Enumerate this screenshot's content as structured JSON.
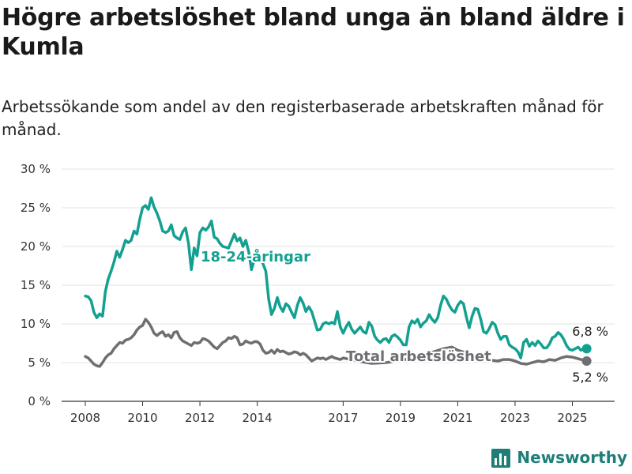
{
  "title": "Högre arbetslöshet bland unga än bland äldre i Kumla",
  "subtitle": "Arbetssökande som andel av den registerbaserade arbetskraften månad för månad.",
  "brand": "Newsworthy",
  "colors": {
    "youth": "#13a091",
    "total": "#6e6e73",
    "grid": "#e3e3e3",
    "axis": "#333333",
    "brand": "#1f7f78"
  },
  "chart_data": {
    "type": "line",
    "ylim": [
      0,
      30
    ],
    "xlim": [
      2007.7,
      2026.4
    ],
    "y_ticks": [
      0,
      5,
      10,
      15,
      20,
      25,
      30
    ],
    "y_tick_labels": [
      "0 %",
      "5 %",
      "10 %",
      "15 %",
      "20 %",
      "25 %",
      "30 %"
    ],
    "x_ticks": [
      2008,
      2010,
      2012,
      2014,
      2017,
      2019,
      2021,
      2023,
      2025
    ],
    "x_tick_labels": [
      "2008",
      "2010",
      "2012",
      "2014",
      "2017",
      "2019",
      "2021",
      "2023",
      "2025"
    ],
    "series": [
      {
        "name": "18-24-åringar",
        "key": "youth",
        "end_label": "6,8 %",
        "points": [
          [
            2008.0,
            13.6
          ],
          [
            2008.1,
            13.5
          ],
          [
            2008.2,
            13.0
          ],
          [
            2008.3,
            11.5
          ],
          [
            2008.4,
            10.8
          ],
          [
            2008.5,
            11.3
          ],
          [
            2008.6,
            11.0
          ],
          [
            2008.7,
            14.2
          ],
          [
            2008.8,
            15.8
          ],
          [
            2008.9,
            16.8
          ],
          [
            2009.0,
            18.0
          ],
          [
            2009.1,
            19.4
          ],
          [
            2009.2,
            18.6
          ],
          [
            2009.3,
            19.6
          ],
          [
            2009.4,
            20.8
          ],
          [
            2009.5,
            20.5
          ],
          [
            2009.6,
            20.8
          ],
          [
            2009.7,
            22.0
          ],
          [
            2009.8,
            21.6
          ],
          [
            2009.9,
            23.5
          ],
          [
            2010.0,
            25.0
          ],
          [
            2010.1,
            25.3
          ],
          [
            2010.2,
            24.8
          ],
          [
            2010.3,
            26.3
          ],
          [
            2010.4,
            25.1
          ],
          [
            2010.5,
            24.3
          ],
          [
            2010.6,
            23.3
          ],
          [
            2010.7,
            22.0
          ],
          [
            2010.8,
            21.8
          ],
          [
            2010.9,
            22.0
          ],
          [
            2011.0,
            22.8
          ],
          [
            2011.1,
            21.4
          ],
          [
            2011.2,
            21.1
          ],
          [
            2011.3,
            20.9
          ],
          [
            2011.4,
            21.9
          ],
          [
            2011.5,
            22.4
          ],
          [
            2011.6,
            20.4
          ],
          [
            2011.7,
            17.0
          ],
          [
            2011.8,
            19.8
          ],
          [
            2011.9,
            18.8
          ],
          [
            2012.0,
            21.8
          ],
          [
            2012.1,
            22.4
          ],
          [
            2012.2,
            22.1
          ],
          [
            2012.3,
            22.5
          ],
          [
            2012.4,
            23.3
          ],
          [
            2012.5,
            21.2
          ],
          [
            2012.6,
            21.0
          ],
          [
            2012.7,
            20.4
          ],
          [
            2012.8,
            20.0
          ],
          [
            2013.0,
            19.8
          ],
          [
            2013.2,
            21.6
          ],
          [
            2013.3,
            20.7
          ],
          [
            2013.4,
            21.1
          ],
          [
            2013.5,
            20.0
          ],
          [
            2013.6,
            20.8
          ],
          [
            2013.7,
            19.4
          ],
          [
            2013.8,
            17.0
          ],
          [
            2013.9,
            18.3
          ],
          [
            2014.1,
            18.6
          ],
          [
            2014.2,
            17.8
          ],
          [
            2014.3,
            16.8
          ],
          [
            2014.4,
            13.2
          ],
          [
            2014.5,
            11.2
          ],
          [
            2014.6,
            12.0
          ],
          [
            2014.7,
            13.4
          ],
          [
            2014.8,
            12.2
          ],
          [
            2014.9,
            11.6
          ],
          [
            2015.0,
            12.6
          ],
          [
            2015.1,
            12.3
          ],
          [
            2015.2,
            11.5
          ],
          [
            2015.3,
            10.8
          ],
          [
            2015.4,
            12.4
          ],
          [
            2015.5,
            13.4
          ],
          [
            2015.6,
            12.7
          ],
          [
            2015.7,
            11.6
          ],
          [
            2015.8,
            12.2
          ],
          [
            2015.9,
            11.6
          ],
          [
            2016.0,
            10.4
          ],
          [
            2016.1,
            9.2
          ],
          [
            2016.2,
            9.3
          ],
          [
            2016.3,
            10.0
          ],
          [
            2016.4,
            10.2
          ],
          [
            2016.5,
            10.0
          ],
          [
            2016.6,
            10.2
          ],
          [
            2016.7,
            10.0
          ],
          [
            2016.8,
            11.6
          ],
          [
            2016.9,
            9.6
          ],
          [
            2017.0,
            8.8
          ],
          [
            2017.1,
            9.6
          ],
          [
            2017.2,
            10.2
          ],
          [
            2017.3,
            9.3
          ],
          [
            2017.4,
            8.8
          ],
          [
            2017.5,
            9.2
          ],
          [
            2017.6,
            9.6
          ],
          [
            2017.7,
            9.0
          ],
          [
            2017.8,
            8.8
          ],
          [
            2017.9,
            10.2
          ],
          [
            2018.0,
            9.7
          ],
          [
            2018.1,
            8.4
          ],
          [
            2018.2,
            7.9
          ],
          [
            2018.3,
            7.6
          ],
          [
            2018.4,
            8.0
          ],
          [
            2018.5,
            8.1
          ],
          [
            2018.6,
            7.6
          ],
          [
            2018.7,
            8.4
          ],
          [
            2018.8,
            8.6
          ],
          [
            2018.9,
            8.3
          ],
          [
            2019.0,
            7.9
          ],
          [
            2019.1,
            7.3
          ],
          [
            2019.2,
            7.3
          ],
          [
            2019.3,
            9.6
          ],
          [
            2019.4,
            10.4
          ],
          [
            2019.5,
            10.1
          ],
          [
            2019.6,
            10.6
          ],
          [
            2019.7,
            9.6
          ],
          [
            2019.8,
            10.1
          ],
          [
            2019.9,
            10.4
          ],
          [
            2020.0,
            11.2
          ],
          [
            2020.1,
            10.6
          ],
          [
            2020.2,
            10.2
          ],
          [
            2020.3,
            10.8
          ],
          [
            2020.4,
            12.4
          ],
          [
            2020.5,
            13.6
          ],
          [
            2020.6,
            13.2
          ],
          [
            2020.7,
            12.4
          ],
          [
            2020.8,
            11.8
          ],
          [
            2020.9,
            11.5
          ],
          [
            2021.0,
            12.4
          ],
          [
            2021.1,
            12.9
          ],
          [
            2021.2,
            12.6
          ],
          [
            2021.3,
            10.9
          ],
          [
            2021.4,
            9.5
          ],
          [
            2021.5,
            11.0
          ],
          [
            2021.6,
            12.0
          ],
          [
            2021.7,
            11.9
          ],
          [
            2021.8,
            10.6
          ],
          [
            2021.9,
            9.0
          ],
          [
            2022.0,
            8.8
          ],
          [
            2022.1,
            9.4
          ],
          [
            2022.2,
            10.2
          ],
          [
            2022.3,
            9.9
          ],
          [
            2022.4,
            8.8
          ],
          [
            2022.5,
            8.0
          ],
          [
            2022.6,
            8.4
          ],
          [
            2022.7,
            8.4
          ],
          [
            2022.8,
            7.3
          ],
          [
            2022.9,
            7.0
          ],
          [
            2023.0,
            6.8
          ],
          [
            2023.1,
            6.4
          ],
          [
            2023.2,
            5.6
          ],
          [
            2023.3,
            7.6
          ],
          [
            2023.4,
            8.0
          ],
          [
            2023.5,
            7.1
          ],
          [
            2023.6,
            7.6
          ],
          [
            2023.7,
            7.2
          ],
          [
            2023.8,
            7.8
          ],
          [
            2023.9,
            7.4
          ],
          [
            2024.0,
            6.9
          ],
          [
            2024.1,
            6.9
          ],
          [
            2024.2,
            7.4
          ],
          [
            2024.3,
            8.2
          ],
          [
            2024.4,
            8.4
          ],
          [
            2024.5,
            8.9
          ],
          [
            2024.6,
            8.6
          ],
          [
            2024.7,
            8.0
          ],
          [
            2024.8,
            7.2
          ],
          [
            2024.9,
            6.7
          ],
          [
            2025.0,
            6.6
          ],
          [
            2025.1,
            6.8
          ],
          [
            2025.2,
            7.0
          ],
          [
            2025.3,
            6.6
          ],
          [
            2025.4,
            6.8
          ],
          [
            2025.5,
            6.8
          ]
        ]
      },
      {
        "name": "Total arbetslöshet",
        "key": "total",
        "end_label": "5,2 %",
        "points": [
          [
            2008.0,
            5.8
          ],
          [
            2008.1,
            5.6
          ],
          [
            2008.2,
            5.2
          ],
          [
            2008.3,
            4.8
          ],
          [
            2008.4,
            4.6
          ],
          [
            2008.5,
            4.5
          ],
          [
            2008.6,
            5.0
          ],
          [
            2008.7,
            5.6
          ],
          [
            2008.8,
            6.0
          ],
          [
            2008.9,
            6.2
          ],
          [
            2009.0,
            6.8
          ],
          [
            2009.1,
            7.2
          ],
          [
            2009.2,
            7.6
          ],
          [
            2009.3,
            7.5
          ],
          [
            2009.4,
            7.9
          ],
          [
            2009.5,
            8.0
          ],
          [
            2009.6,
            8.2
          ],
          [
            2009.7,
            8.6
          ],
          [
            2009.8,
            9.2
          ],
          [
            2009.9,
            9.6
          ],
          [
            2010.0,
            9.8
          ],
          [
            2010.1,
            10.6
          ],
          [
            2010.2,
            10.2
          ],
          [
            2010.3,
            9.6
          ],
          [
            2010.4,
            8.8
          ],
          [
            2010.5,
            8.5
          ],
          [
            2010.6,
            8.8
          ],
          [
            2010.7,
            9.0
          ],
          [
            2010.8,
            8.4
          ],
          [
            2010.9,
            8.6
          ],
          [
            2011.0,
            8.2
          ],
          [
            2011.1,
            8.9
          ],
          [
            2011.2,
            9.0
          ],
          [
            2011.3,
            8.2
          ],
          [
            2011.4,
            7.8
          ],
          [
            2011.5,
            7.6
          ],
          [
            2011.6,
            7.4
          ],
          [
            2011.7,
            7.2
          ],
          [
            2011.8,
            7.6
          ],
          [
            2011.9,
            7.5
          ],
          [
            2012.0,
            7.6
          ],
          [
            2012.1,
            8.1
          ],
          [
            2012.2,
            8.0
          ],
          [
            2012.3,
            7.8
          ],
          [
            2012.4,
            7.4
          ],
          [
            2012.5,
            7.0
          ],
          [
            2012.6,
            6.8
          ],
          [
            2012.7,
            7.2
          ],
          [
            2012.8,
            7.6
          ],
          [
            2012.9,
            7.8
          ],
          [
            2013.0,
            8.2
          ],
          [
            2013.1,
            8.1
          ],
          [
            2013.2,
            8.4
          ],
          [
            2013.3,
            8.2
          ],
          [
            2013.4,
            7.3
          ],
          [
            2013.5,
            7.4
          ],
          [
            2013.6,
            7.8
          ],
          [
            2013.7,
            7.6
          ],
          [
            2013.8,
            7.5
          ],
          [
            2013.9,
            7.7
          ],
          [
            2014.0,
            7.7
          ],
          [
            2014.1,
            7.4
          ],
          [
            2014.2,
            6.6
          ],
          [
            2014.3,
            6.2
          ],
          [
            2014.4,
            6.3
          ],
          [
            2014.5,
            6.6
          ],
          [
            2014.6,
            6.2
          ],
          [
            2014.7,
            6.7
          ],
          [
            2014.8,
            6.4
          ],
          [
            2014.9,
            6.5
          ],
          [
            2015.0,
            6.3
          ],
          [
            2015.1,
            6.1
          ],
          [
            2015.2,
            6.2
          ],
          [
            2015.3,
            6.4
          ],
          [
            2015.4,
            6.3
          ],
          [
            2015.5,
            6.0
          ],
          [
            2015.6,
            6.2
          ],
          [
            2015.7,
            6.0
          ],
          [
            2015.8,
            5.6
          ],
          [
            2015.9,
            5.2
          ],
          [
            2016.0,
            5.4
          ],
          [
            2016.1,
            5.6
          ],
          [
            2016.2,
            5.5
          ],
          [
            2016.3,
            5.6
          ],
          [
            2016.4,
            5.4
          ],
          [
            2016.5,
            5.6
          ],
          [
            2016.6,
            5.8
          ],
          [
            2016.7,
            5.6
          ],
          [
            2016.8,
            5.5
          ],
          [
            2016.9,
            5.4
          ],
          [
            2017.0,
            5.6
          ],
          [
            2017.5,
            5.2
          ],
          [
            2018.0,
            4.9
          ],
          [
            2018.5,
            5.0
          ],
          [
            2019.0,
            5.3
          ],
          [
            2019.5,
            5.6
          ],
          [
            2020.0,
            6.2
          ],
          [
            2020.5,
            6.8
          ],
          [
            2020.8,
            7.0
          ],
          [
            2021.0,
            6.6
          ],
          [
            2021.5,
            6.0
          ],
          [
            2022.0,
            5.6
          ],
          [
            2022.2,
            5.3
          ],
          [
            2022.4,
            5.2
          ],
          [
            2022.6,
            5.4
          ],
          [
            2022.8,
            5.4
          ],
          [
            2023.0,
            5.2
          ],
          [
            2023.2,
            4.9
          ],
          [
            2023.4,
            4.8
          ],
          [
            2023.6,
            5.0
          ],
          [
            2023.8,
            5.2
          ],
          [
            2024.0,
            5.1
          ],
          [
            2024.2,
            5.4
          ],
          [
            2024.4,
            5.3
          ],
          [
            2024.6,
            5.6
          ],
          [
            2024.8,
            5.8
          ],
          [
            2025.0,
            5.7
          ],
          [
            2025.2,
            5.5
          ],
          [
            2025.3,
            5.4
          ],
          [
            2025.4,
            5.3
          ],
          [
            2025.5,
            5.2
          ]
        ]
      }
    ]
  }
}
